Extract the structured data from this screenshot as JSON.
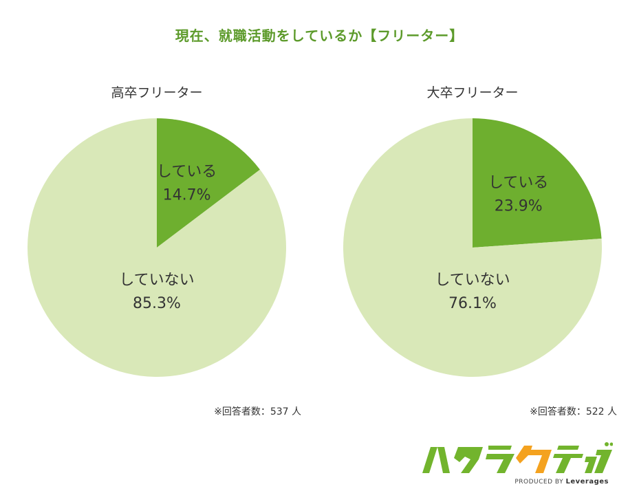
{
  "title": "現在、就職活動をしているか【フリーター】",
  "colors": {
    "title": "#5c9a2a",
    "active": "#6eaf2f",
    "inactive": "#d9e8b8",
    "logo_green": "#72b42d",
    "logo_orange": "#f4a21f"
  },
  "chart_data": [
    {
      "type": "pie",
      "title": "高卒フリーター",
      "labels": [
        "している",
        "していない"
      ],
      "values": [
        14.7,
        85.3
      ],
      "value_labels": [
        "14.7%",
        "85.3%"
      ],
      "note": "※回答者数：537 人"
    },
    {
      "type": "pie",
      "title": "大卒フリーター",
      "labels": [
        "している",
        "していない"
      ],
      "values": [
        23.9,
        76.1
      ],
      "value_labels": [
        "23.9%",
        "76.1%"
      ],
      "note": "※回答者数：522 人"
    }
  ],
  "logo": {
    "name": "ハタラクティブ",
    "produced_by": "PRODUCED BY",
    "company": "Leverages"
  }
}
